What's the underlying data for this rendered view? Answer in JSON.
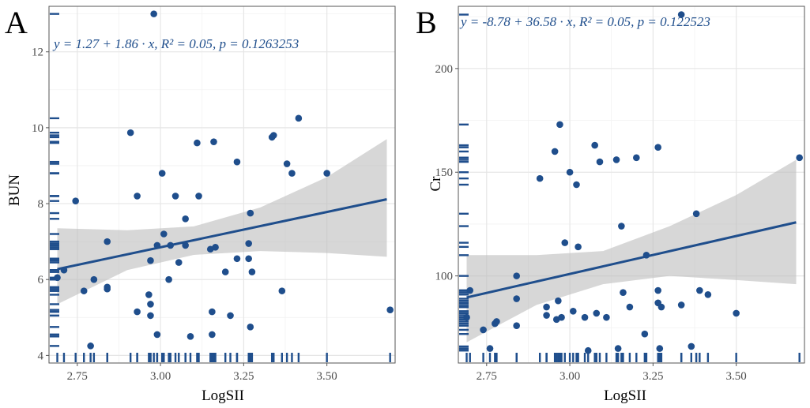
{
  "chart_data": [
    {
      "type": "scatter",
      "panel_label": "A",
      "xlabel": "LogSII",
      "ylabel": "BUN",
      "xlim": [
        2.665,
        3.705
      ],
      "ylim": [
        3.8,
        13.2
      ],
      "x_ticks": [
        2.75,
        3.0,
        3.25,
        3.5
      ],
      "x_tick_labels": [
        "2.75",
        "3.00",
        "3.25",
        "3.50"
      ],
      "y_ticks": [
        4,
        6,
        8,
        10,
        12
      ],
      "y_tick_labels": [
        "4",
        "6",
        "8",
        "10",
        "12"
      ],
      "equation": "y = 1.27 + 1.86 · x,   R² = 0.05,   p = 0.1263253",
      "fit": {
        "intercept": 1.27,
        "slope": 1.86
      },
      "ci": {
        "x": [
          2.69,
          2.9,
          3.1,
          3.3,
          3.5,
          3.68
        ],
        "lower": [
          5.35,
          6.25,
          6.65,
          6.75,
          6.7,
          6.6
        ],
        "upper": [
          7.35,
          7.3,
          7.4,
          7.9,
          8.7,
          9.7
        ]
      },
      "points": [
        [
          2.69,
          6.05
        ],
        [
          2.71,
          6.25
        ],
        [
          2.745,
          8.07
        ],
        [
          2.77,
          5.7
        ],
        [
          2.79,
          4.25
        ],
        [
          2.8,
          6.0
        ],
        [
          2.84,
          7.0
        ],
        [
          2.84,
          5.75
        ],
        [
          2.84,
          5.8
        ],
        [
          2.91,
          9.87
        ],
        [
          2.93,
          8.2
        ],
        [
          2.93,
          5.15
        ],
        [
          2.965,
          5.6
        ],
        [
          2.97,
          5.35
        ],
        [
          2.97,
          5.05
        ],
        [
          2.97,
          6.5
        ],
        [
          2.98,
          13.0
        ],
        [
          2.99,
          6.9
        ],
        [
          2.99,
          4.55
        ],
        [
          3.005,
          8.8
        ],
        [
          3.01,
          7.2
        ],
        [
          3.025,
          6.0
        ],
        [
          3.03,
          6.9
        ],
        [
          3.045,
          8.2
        ],
        [
          3.055,
          6.45
        ],
        [
          3.075,
          6.9
        ],
        [
          3.075,
          7.6
        ],
        [
          3.09,
          4.5
        ],
        [
          3.11,
          9.6
        ],
        [
          3.115,
          8.2
        ],
        [
          3.15,
          6.8
        ],
        [
          3.155,
          5.15
        ],
        [
          3.155,
          4.55
        ],
        [
          3.16,
          9.63
        ],
        [
          3.165,
          6.85
        ],
        [
          3.195,
          6.2
        ],
        [
          3.21,
          5.05
        ],
        [
          3.23,
          9.1
        ],
        [
          3.23,
          6.55
        ],
        [
          3.265,
          6.95
        ],
        [
          3.265,
          6.55
        ],
        [
          3.27,
          7.75
        ],
        [
          3.27,
          4.75
        ],
        [
          3.275,
          6.2
        ],
        [
          3.335,
          9.75
        ],
        [
          3.34,
          9.8
        ],
        [
          3.365,
          5.7
        ],
        [
          3.38,
          9.05
        ],
        [
          3.395,
          8.8
        ],
        [
          3.415,
          10.25
        ],
        [
          3.5,
          8.8
        ],
        [
          3.69,
          5.2
        ]
      ]
    },
    {
      "type": "scatter",
      "panel_label": "B",
      "xlabel": "LogSII",
      "ylabel": "Cr",
      "xlim": [
        2.665,
        3.705
      ],
      "ylim": [
        58,
        230
      ],
      "x_ticks": [
        2.75,
        3.0,
        3.25,
        3.5
      ],
      "x_tick_labels": [
        "2.75",
        "3.00",
        "3.25",
        "3.50"
      ],
      "y_ticks": [
        100,
        150,
        200
      ],
      "y_tick_labels": [
        "100",
        "150",
        "200"
      ],
      "equation": "y = -8.78 + 36.58 · x,   R² = 0.05,   p = 0.122523",
      "fit": {
        "intercept": -8.78,
        "slope": 36.58
      },
      "ci": {
        "x": [
          2.69,
          2.9,
          3.1,
          3.3,
          3.5,
          3.68
        ],
        "lower": [
          68,
          86,
          96,
          100,
          98,
          96
        ],
        "upper": [
          110,
          110,
          112,
          124,
          139,
          156
        ]
      },
      "points": [
        [
          2.69,
          80
        ],
        [
          2.7,
          93
        ],
        [
          2.74,
          74
        ],
        [
          2.76,
          65
        ],
        [
          2.775,
          77
        ],
        [
          2.78,
          78
        ],
        [
          2.84,
          89
        ],
        [
          2.84,
          100
        ],
        [
          2.84,
          76
        ],
        [
          2.91,
          147
        ],
        [
          2.93,
          81
        ],
        [
          2.93,
          85
        ],
        [
          2.955,
          160
        ],
        [
          2.96,
          79
        ],
        [
          2.965,
          88
        ],
        [
          2.97,
          173
        ],
        [
          2.975,
          80
        ],
        [
          2.985,
          116
        ],
        [
          3.0,
          150
        ],
        [
          3.01,
          83
        ],
        [
          3.02,
          144
        ],
        [
          3.025,
          114
        ],
        [
          3.045,
          80
        ],
        [
          3.055,
          64
        ],
        [
          3.075,
          163
        ],
        [
          3.08,
          82
        ],
        [
          3.09,
          155
        ],
        [
          3.11,
          80
        ],
        [
          3.14,
          156
        ],
        [
          3.145,
          65
        ],
        [
          3.155,
          124
        ],
        [
          3.16,
          92
        ],
        [
          3.18,
          85
        ],
        [
          3.2,
          157
        ],
        [
          3.225,
          72
        ],
        [
          3.23,
          110
        ],
        [
          3.265,
          162
        ],
        [
          3.265,
          93
        ],
        [
          3.265,
          87
        ],
        [
          3.27,
          65
        ],
        [
          3.275,
          85
        ],
        [
          3.335,
          86
        ],
        [
          3.335,
          226
        ],
        [
          3.365,
          66
        ],
        [
          3.38,
          130
        ],
        [
          3.39,
          93
        ],
        [
          3.415,
          91
        ],
        [
          3.5,
          82
        ],
        [
          3.69,
          157
        ]
      ]
    }
  ]
}
